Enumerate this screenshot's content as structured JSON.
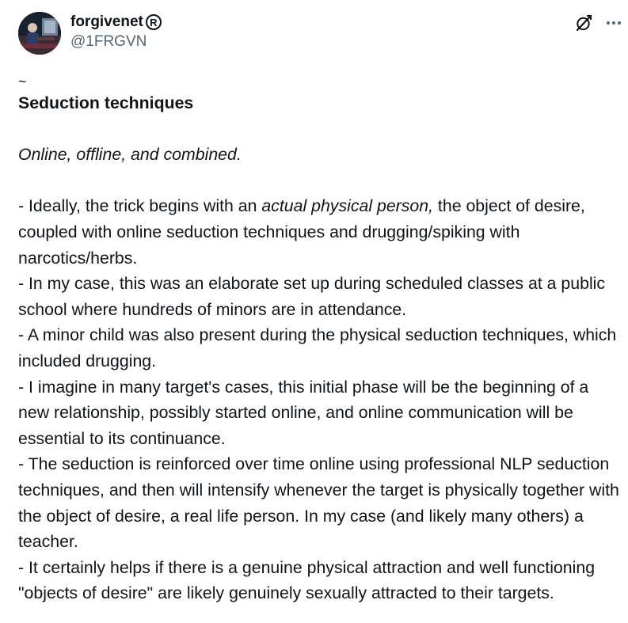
{
  "author": {
    "display_name": "forgivenet",
    "badge": "R",
    "handle": "@1FRGVN"
  },
  "header_icons": {
    "grok": "grok-slash-icon",
    "more": "more-dots-icon"
  },
  "post": {
    "tilde": "~",
    "title": "Seduction techniques",
    "subtitle": "Online, offline, and combined.",
    "p1_pre": "- Ideally, the trick begins with an ",
    "p1_em": "actual physical person,",
    "p1_post": " the object of desire, coupled with online seduction techniques and drugging/spiking with narcotics/herbs.",
    "p2": "- In my case, this was an elaborate set up during scheduled classes at a public school where hundreds of minors are in attendance.",
    "p3": "- A minor child was also present during the physical seduction techniques, which included drugging.",
    "p4": "- I imagine in many target's cases, this initial phase will be the beginning of a new relationship, possibly started online, and online communication will be essential to its continuance.",
    "p5": "- The seduction is reinforced over time online using professional NLP seduction techniques, and then will intensify whenever the target is physically together with the object of desire, a real life person. In my case (and likely many others) a teacher.",
    "p6": "- It certainly helps if there is a genuine physical attraction and well functioning \"objects of desire\" are likely genuinely sexually attracted to their targets."
  }
}
